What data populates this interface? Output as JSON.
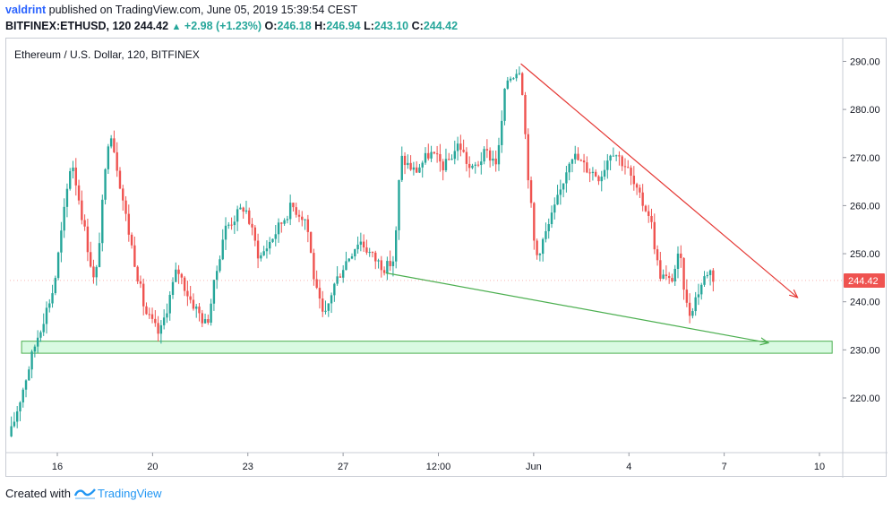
{
  "header": {
    "author": "valdrint",
    "published_text": "published on TradingView.com, June 05, 2019 15:39:54 CEST",
    "symbol": "BITFINEX:ETHUSD, 120",
    "last": "244.42",
    "change": "+2.98 (+1.23%)",
    "open_label": "O:",
    "open": "246.18",
    "high_label": "H:",
    "high": "246.94",
    "low_label": "L:",
    "low": "243.10",
    "close_label": "C:",
    "close": "244.42"
  },
  "chart_title": "Ethereum / U.S. Dollar, 120, BITFINEX",
  "footer": {
    "created_with": "Created with",
    "brand": "TradingView"
  },
  "colors": {
    "up": "#26a69a",
    "down": "#ef5350",
    "resistance": "#e53935",
    "support": "#4caf50",
    "zone_fill": "#b9f6ca",
    "last_price_bg": "#ef5350"
  },
  "chart_data": {
    "type": "candlestick",
    "title": "Ethereum / U.S. Dollar, 120, BITFINEX",
    "x_ticks": [
      "16",
      "20",
      "23",
      "27",
      "12:00",
      "Jun",
      "4",
      "7",
      "10"
    ],
    "y_ticks": [
      "290.00",
      "280.00",
      "270.00",
      "260.00",
      "250.00",
      "240.00",
      "230.00",
      "220.00"
    ],
    "ylim": [
      209,
      294
    ],
    "last_price": 244.42,
    "last_price_label": "244.42",
    "price_path": [
      {
        "t": 0.0,
        "p": 212
      },
      {
        "t": 0.9,
        "p": 232
      },
      {
        "t": 1.5,
        "p": 243
      },
      {
        "t": 2.1,
        "p": 270
      },
      {
        "t": 2.9,
        "p": 243
      },
      {
        "t": 3.4,
        "p": 277
      },
      {
        "t": 4.0,
        "p": 256
      },
      {
        "t": 4.6,
        "p": 238
      },
      {
        "t": 5.1,
        "p": 233
      },
      {
        "t": 5.7,
        "p": 247
      },
      {
        "t": 6.1,
        "p": 241
      },
      {
        "t": 6.7,
        "p": 235
      },
      {
        "t": 7.3,
        "p": 255
      },
      {
        "t": 8.0,
        "p": 260
      },
      {
        "t": 8.5,
        "p": 249
      },
      {
        "t": 9.0,
        "p": 254
      },
      {
        "t": 9.6,
        "p": 260
      },
      {
        "t": 10.1,
        "p": 257
      },
      {
        "t": 10.4,
        "p": 243
      },
      {
        "t": 10.7,
        "p": 236
      },
      {
        "t": 11.0,
        "p": 243
      },
      {
        "t": 11.4,
        "p": 248
      },
      {
        "t": 11.9,
        "p": 253
      },
      {
        "t": 12.4,
        "p": 249
      },
      {
        "t": 12.8,
        "p": 247
      },
      {
        "t": 13.1,
        "p": 249
      },
      {
        "t": 13.3,
        "p": 270
      },
      {
        "t": 13.8,
        "p": 267
      },
      {
        "t": 14.3,
        "p": 271
      },
      {
        "t": 14.8,
        "p": 268
      },
      {
        "t": 15.3,
        "p": 273
      },
      {
        "t": 15.7,
        "p": 267
      },
      {
        "t": 16.2,
        "p": 271
      },
      {
        "t": 16.6,
        "p": 269
      },
      {
        "t": 16.9,
        "p": 286
      },
      {
        "t": 17.4,
        "p": 289
      },
      {
        "t": 17.6,
        "p": 270
      },
      {
        "t": 17.9,
        "p": 249
      },
      {
        "t": 18.3,
        "p": 255
      },
      {
        "t": 18.7,
        "p": 262
      },
      {
        "t": 19.1,
        "p": 271
      },
      {
        "t": 19.6,
        "p": 268
      },
      {
        "t": 20.1,
        "p": 266
      },
      {
        "t": 20.5,
        "p": 272
      },
      {
        "t": 21.0,
        "p": 268
      },
      {
        "t": 21.4,
        "p": 262
      },
      {
        "t": 21.8,
        "p": 258
      },
      {
        "t": 22.1,
        "p": 246
      },
      {
        "t": 22.5,
        "p": 244
      },
      {
        "t": 22.8,
        "p": 250
      },
      {
        "t": 23.1,
        "p": 237
      },
      {
        "t": 23.5,
        "p": 243
      },
      {
        "t": 23.8,
        "p": 247
      },
      {
        "t": 24.0,
        "p": 244.4
      }
    ],
    "annotations": [
      {
        "name": "resistance-trendline",
        "from": {
          "t": 17.4,
          "p": 289.5
        },
        "to": {
          "t": 26.8,
          "p": 241
        }
      },
      {
        "name": "support-trendline",
        "from": {
          "t": 12.8,
          "p": 246
        },
        "to": {
          "t": 25.8,
          "p": 231.5
        }
      },
      {
        "name": "support-zone",
        "p_low": 229.3,
        "p_high": 231.8,
        "t_start": 0.4,
        "t_end": 28.0
      }
    ]
  }
}
